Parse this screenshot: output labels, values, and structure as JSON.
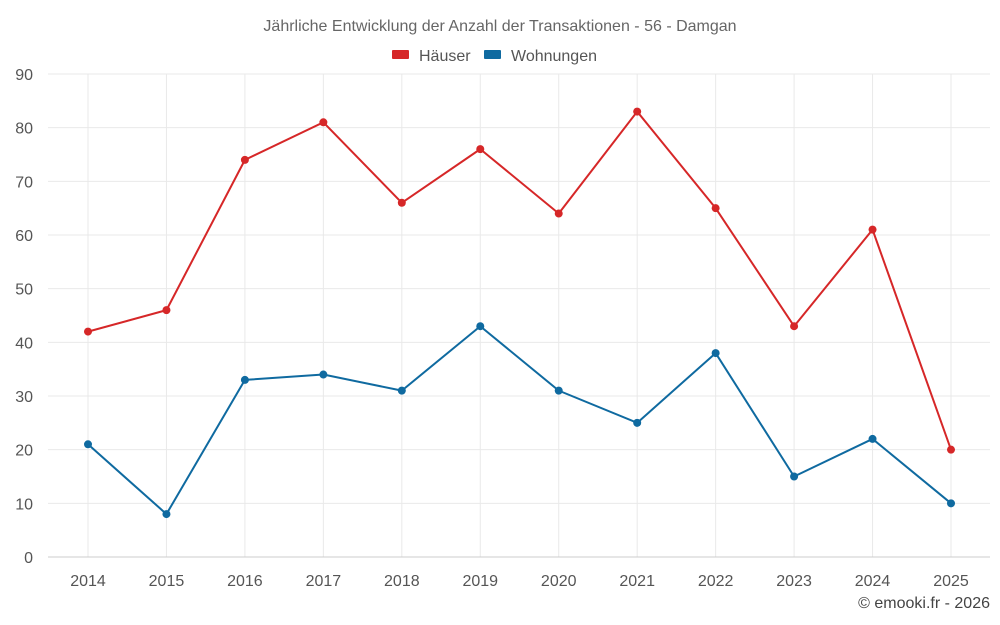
{
  "credit": "© emooki.fr - 2026",
  "chart_data": {
    "type": "line",
    "title": "Jährliche Entwicklung der Anzahl der Transaktionen - 56 - Damgan",
    "xlabel": "",
    "ylabel": "",
    "categories": [
      "2014",
      "2015",
      "2016",
      "2017",
      "2018",
      "2019",
      "2020",
      "2021",
      "2022",
      "2023",
      "2024",
      "2025"
    ],
    "ylim": [
      0,
      90
    ],
    "yticks": [
      0,
      10,
      20,
      30,
      40,
      50,
      60,
      70,
      80,
      90
    ],
    "grid": true,
    "legend_position": "top-center",
    "series": [
      {
        "name": "Häuser",
        "color": "#d62728",
        "values": [
          42,
          46,
          74,
          81,
          66,
          76,
          64,
          83,
          65,
          43,
          61,
          20
        ]
      },
      {
        "name": "Wohnungen",
        "color": "#0f6aa0",
        "values": [
          21,
          8,
          33,
          34,
          31,
          43,
          31,
          25,
          38,
          15,
          22,
          10
        ]
      }
    ]
  }
}
